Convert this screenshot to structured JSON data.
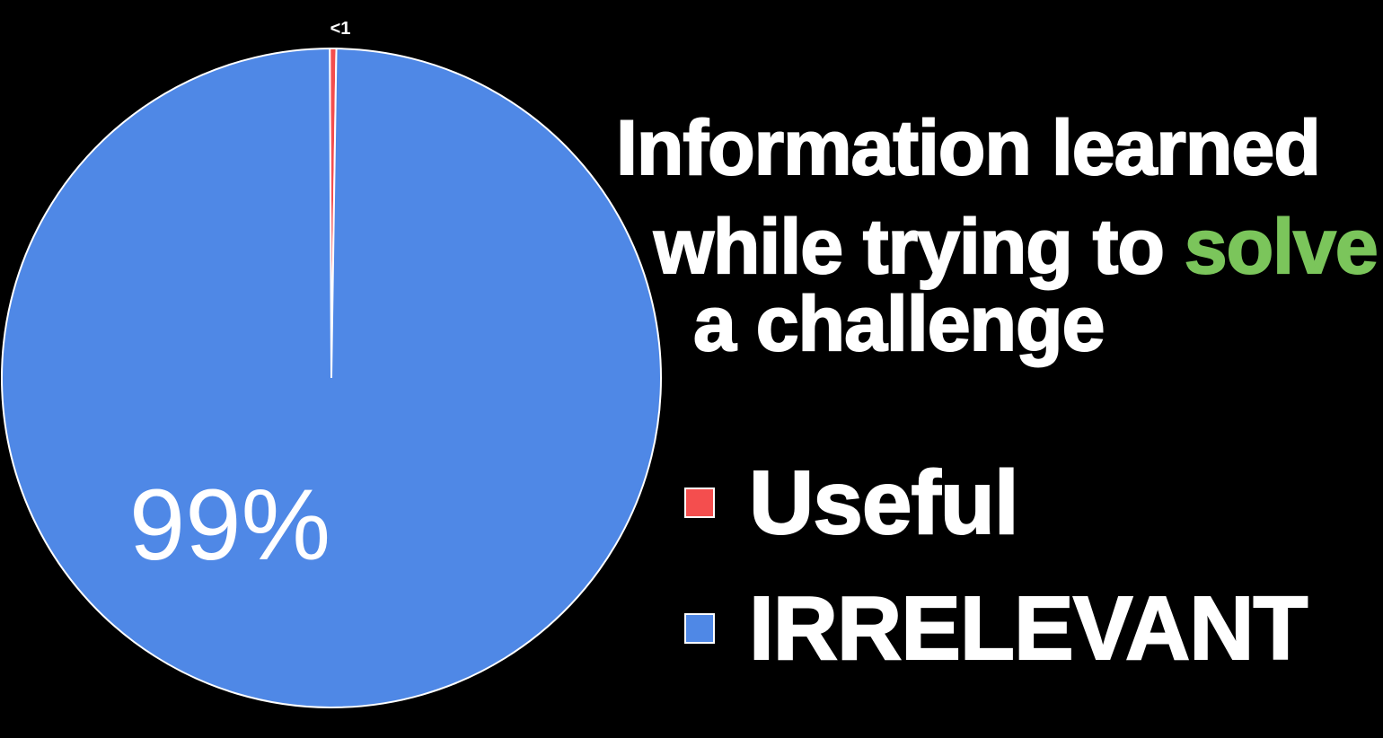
{
  "chart_data": {
    "type": "pie",
    "title_parts": [
      {
        "line": 0,
        "segments": [
          {
            "text": "Information learned",
            "highlight": false
          }
        ]
      },
      {
        "line": 1,
        "segments": [
          {
            "text": "while trying to ",
            "highlight": false
          },
          {
            "text": "solve",
            "highlight": true
          }
        ]
      },
      {
        "line": 2,
        "segments": [
          {
            "text": "a challenge",
            "highlight": false
          }
        ]
      }
    ],
    "slices": [
      {
        "name": "Useful",
        "value": 1,
        "color": "#f44e4e",
        "label": "<1"
      },
      {
        "name": "IRRELEVANT",
        "value": 99,
        "color": "#4f88e6",
        "label": "99%"
      }
    ],
    "legend_position": "right"
  },
  "colors": {
    "background": "#000000",
    "title_text": "#ffffff",
    "title_highlight": "#7bc55b",
    "slice_border": "#ffffff"
  }
}
